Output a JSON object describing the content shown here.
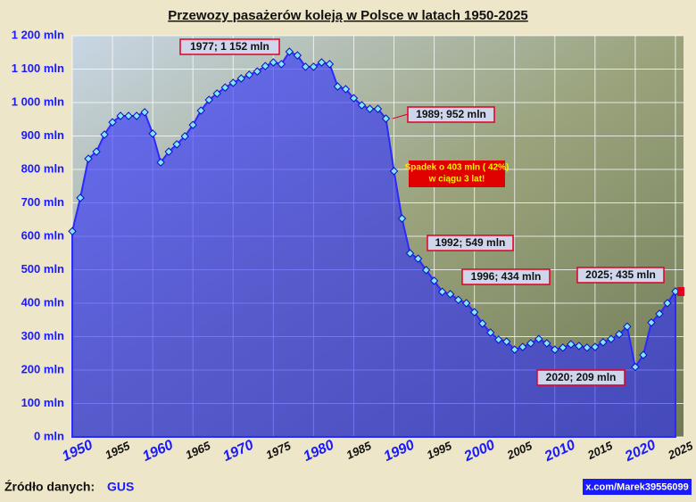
{
  "chart_data": {
    "type": "area",
    "title": "Przewozy pasażerów koleją w Polsce w latach 1950-2025",
    "x": [
      1950,
      1951,
      1952,
      1953,
      1954,
      1955,
      1956,
      1957,
      1958,
      1959,
      1960,
      1961,
      1962,
      1963,
      1964,
      1965,
      1966,
      1967,
      1968,
      1969,
      1970,
      1971,
      1972,
      1973,
      1974,
      1975,
      1976,
      1977,
      1978,
      1979,
      1980,
      1981,
      1982,
      1983,
      1984,
      1985,
      1986,
      1987,
      1988,
      1989,
      1990,
      1991,
      1992,
      1993,
      1994,
      1995,
      1996,
      1997,
      1998,
      1999,
      2000,
      2001,
      2002,
      2003,
      2004,
      2005,
      2006,
      2007,
      2008,
      2009,
      2010,
      2011,
      2012,
      2013,
      2014,
      2015,
      2016,
      2017,
      2018,
      2019,
      2020,
      2021,
      2022,
      2023,
      2024,
      2025
    ],
    "values": [
      615,
      715,
      832,
      853,
      904,
      941,
      960,
      960,
      960,
      971,
      907,
      821,
      853,
      875,
      899,
      933,
      976,
      1008,
      1027,
      1045,
      1059,
      1072,
      1083,
      1093,
      1109,
      1120,
      1115,
      1152,
      1141,
      1107,
      1107,
      1120,
      1115,
      1048,
      1040,
      1013,
      992,
      981,
      981,
      952,
      795,
      653,
      549,
      533,
      499,
      467,
      434,
      427,
      410,
      400,
      373,
      339,
      312,
      291,
      285,
      261,
      269,
      280,
      293,
      280,
      261,
      267,
      277,
      272,
      267,
      269,
      283,
      293,
      307,
      330,
      209,
      245,
      342,
      368,
      400,
      435
    ],
    "color": "#2a2aff",
    "xlim": [
      1950,
      2026
    ],
    "xticks": [
      1950,
      1955,
      1960,
      1965,
      1970,
      1975,
      1980,
      1985,
      1990,
      1995,
      2000,
      2005,
      2010,
      2015,
      2020,
      2025
    ],
    "ylim": [
      0,
      1200
    ],
    "yticks": [
      {
        "value": 0,
        "label": "0 mln"
      },
      {
        "value": 100,
        "label": "100 mln"
      },
      {
        "value": 200,
        "label": "200 mln"
      },
      {
        "value": 300,
        "label": "300 mln"
      },
      {
        "value": 400,
        "label": "400 mln"
      },
      {
        "value": 500,
        "label": "500 mln"
      },
      {
        "value": 600,
        "label": "600 mln"
      },
      {
        "value": 700,
        "label": "700 mln"
      },
      {
        "value": 800,
        "label": "800 mln"
      },
      {
        "value": 900,
        "label": "900 mln"
      },
      {
        "value": 1000,
        "label": "1 000 mln"
      },
      {
        "value": 1100,
        "label": "1 100 mln"
      },
      {
        "value": 1200,
        "label": "1 200 mln"
      }
    ],
    "grid": true,
    "annotations": [
      "1977; 1 152 mln",
      "1989; 952 mln",
      "1992; 549 mln",
      "1996; 434 mln",
      "2025; 435 mln",
      "2020; 209 mln"
    ],
    "note": [
      "Spadek o 403 mln ( 42%)",
      "w ciągu 3 lat!"
    ]
  },
  "footer": {
    "source_label": "Źródło danych:",
    "source": "GUS",
    "credit": "x.com/Marek39556099"
  }
}
